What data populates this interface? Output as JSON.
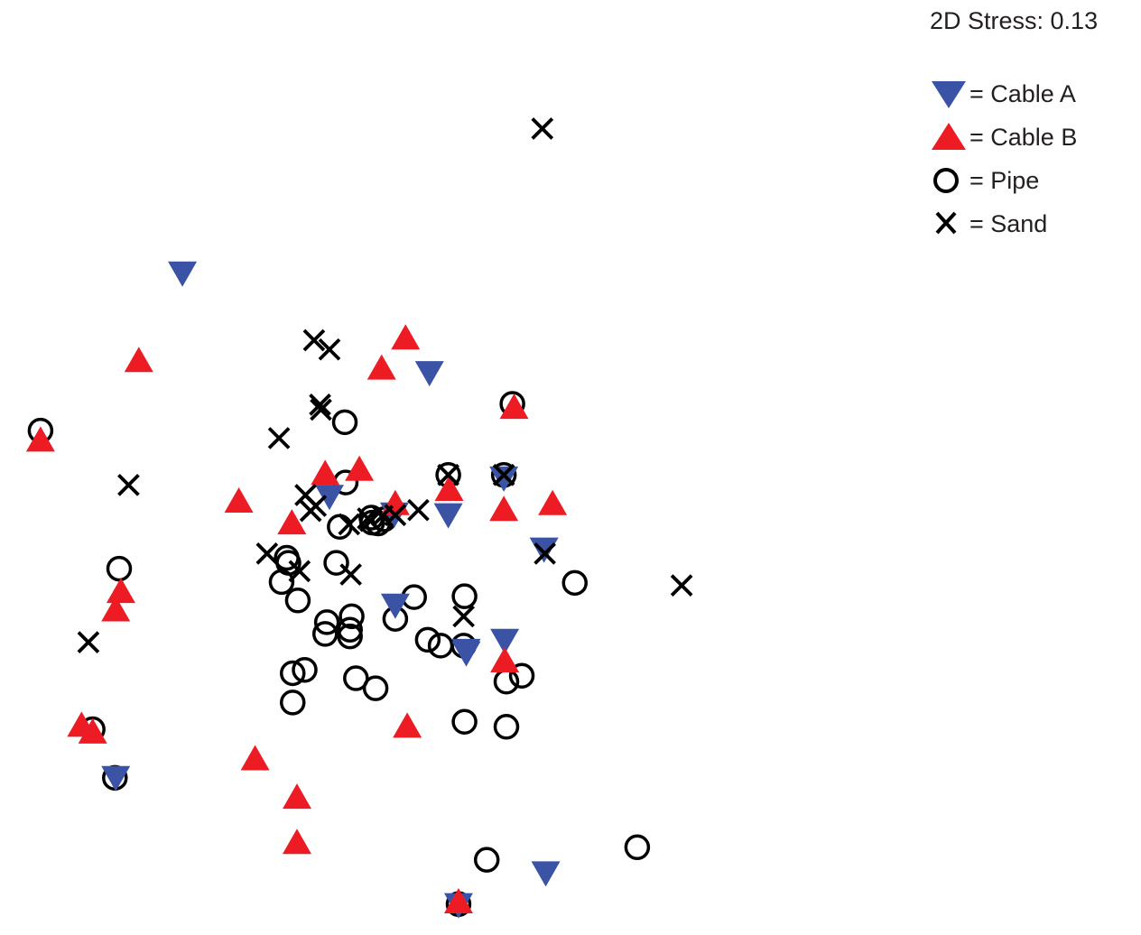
{
  "stress_label": "2D Stress: 0.13",
  "legend": [
    {
      "group": "cable_a",
      "label": "= Cable A"
    },
    {
      "group": "cable_b",
      "label": "= Cable B"
    },
    {
      "group": "pipe",
      "label": "= Pipe"
    },
    {
      "group": "sand",
      "label": "= Sand"
    }
  ],
  "colors": {
    "cable_a": "#3a53a4",
    "cable_b": "#ed1c24",
    "pipe": "#000000",
    "sand": "#000000"
  },
  "chart_data": {
    "type": "scatter",
    "title": "",
    "xlabel": "",
    "ylabel": "",
    "axes_visible": false,
    "grid": false,
    "legend_position": "top-right",
    "xlim": [
      0,
      1000
    ],
    "ylim": [
      0,
      1000
    ],
    "series": [
      {
        "name": "Cable A",
        "group": "cable_a",
        "marker": "triangle-down",
        "points": [
          [
            187,
            764
          ],
          [
            476,
            645
          ],
          [
            359,
            497
          ],
          [
            435,
            476
          ],
          [
            498,
            475
          ],
          [
            563,
            519
          ],
          [
            610,
            434
          ],
          [
            436,
            367
          ],
          [
            519,
            313
          ],
          [
            564,
            325
          ],
          [
            519,
            310
          ],
          [
            109,
            161
          ],
          [
            510,
            9
          ],
          [
            612,
            47
          ]
        ]
      },
      {
        "name": "Cable B",
        "group": "cable_b",
        "marker": "triangle-up",
        "points": [
          [
            448,
            688
          ],
          [
            136,
            661
          ],
          [
            420,
            652
          ],
          [
            394,
            531
          ],
          [
            21,
            566
          ],
          [
            575,
            605
          ],
          [
            354,
            526
          ],
          [
            253,
            493
          ],
          [
            315,
            467
          ],
          [
            620,
            490
          ],
          [
            436,
            490
          ],
          [
            563,
            483
          ],
          [
            115,
            385
          ],
          [
            109,
            363
          ],
          [
            499,
            507
          ],
          [
            564,
            302
          ],
          [
            69,
            225
          ],
          [
            82,
            217
          ],
          [
            450,
            224
          ],
          [
            272,
            185
          ],
          [
            321,
            139
          ],
          [
            321,
            85
          ],
          [
            510,
            14
          ]
        ]
      },
      {
        "name": "Pipe",
        "group": "pipe",
        "marker": "circle",
        "points": [
          [
            377,
            587
          ],
          [
            573,
            609
          ],
          [
            378,
            515
          ],
          [
            21,
            577
          ],
          [
            563,
            524
          ],
          [
            408,
            473
          ],
          [
            409,
            467
          ],
          [
            416,
            466
          ],
          [
            423,
            471
          ],
          [
            371,
            462
          ],
          [
            309,
            425
          ],
          [
            311,
            419
          ],
          [
            367,
            419
          ],
          [
            498,
            524
          ],
          [
            113,
            412
          ],
          [
            303,
            396
          ],
          [
            322,
            374
          ],
          [
            385,
            355
          ],
          [
            436,
            352
          ],
          [
            458,
            378
          ],
          [
            517,
            379
          ],
          [
            356,
            348
          ],
          [
            383,
            339
          ],
          [
            354,
            334
          ],
          [
            383,
            331
          ],
          [
            474,
            327
          ],
          [
            489,
            320
          ],
          [
            516,
            320
          ],
          [
            330,
            291
          ],
          [
            316,
            287
          ],
          [
            584,
            284
          ],
          [
            566,
            277
          ],
          [
            390,
            281
          ],
          [
            413,
            269
          ],
          [
            316,
            252
          ],
          [
            517,
            229
          ],
          [
            566,
            223
          ],
          [
            82,
            220
          ],
          [
            108,
            162
          ],
          [
            719,
            79
          ],
          [
            543,
            64
          ],
          [
            510,
            11
          ],
          [
            646,
            395
          ]
        ]
      },
      {
        "name": "Sand",
        "group": "sand",
        "marker": "x",
        "points": [
          [
            608,
            938
          ],
          [
            341,
            685
          ],
          [
            359,
            674
          ],
          [
            348,
            608
          ],
          [
            349,
            602
          ],
          [
            300,
            568
          ],
          [
            124,
            512
          ],
          [
            331,
            500
          ],
          [
            337,
            481
          ],
          [
            343,
            487
          ],
          [
            382,
            465
          ],
          [
            404,
            472
          ],
          [
            407,
            469
          ],
          [
            421,
            475
          ],
          [
            436,
            476
          ],
          [
            463,
            482
          ],
          [
            498,
            524
          ],
          [
            563,
            524
          ],
          [
            611,
            430
          ],
          [
            286,
            430
          ],
          [
            324,
            409
          ],
          [
            384,
            405
          ],
          [
            771,
            392
          ],
          [
            516,
            355
          ],
          [
            77,
            324
          ]
        ]
      }
    ]
  }
}
